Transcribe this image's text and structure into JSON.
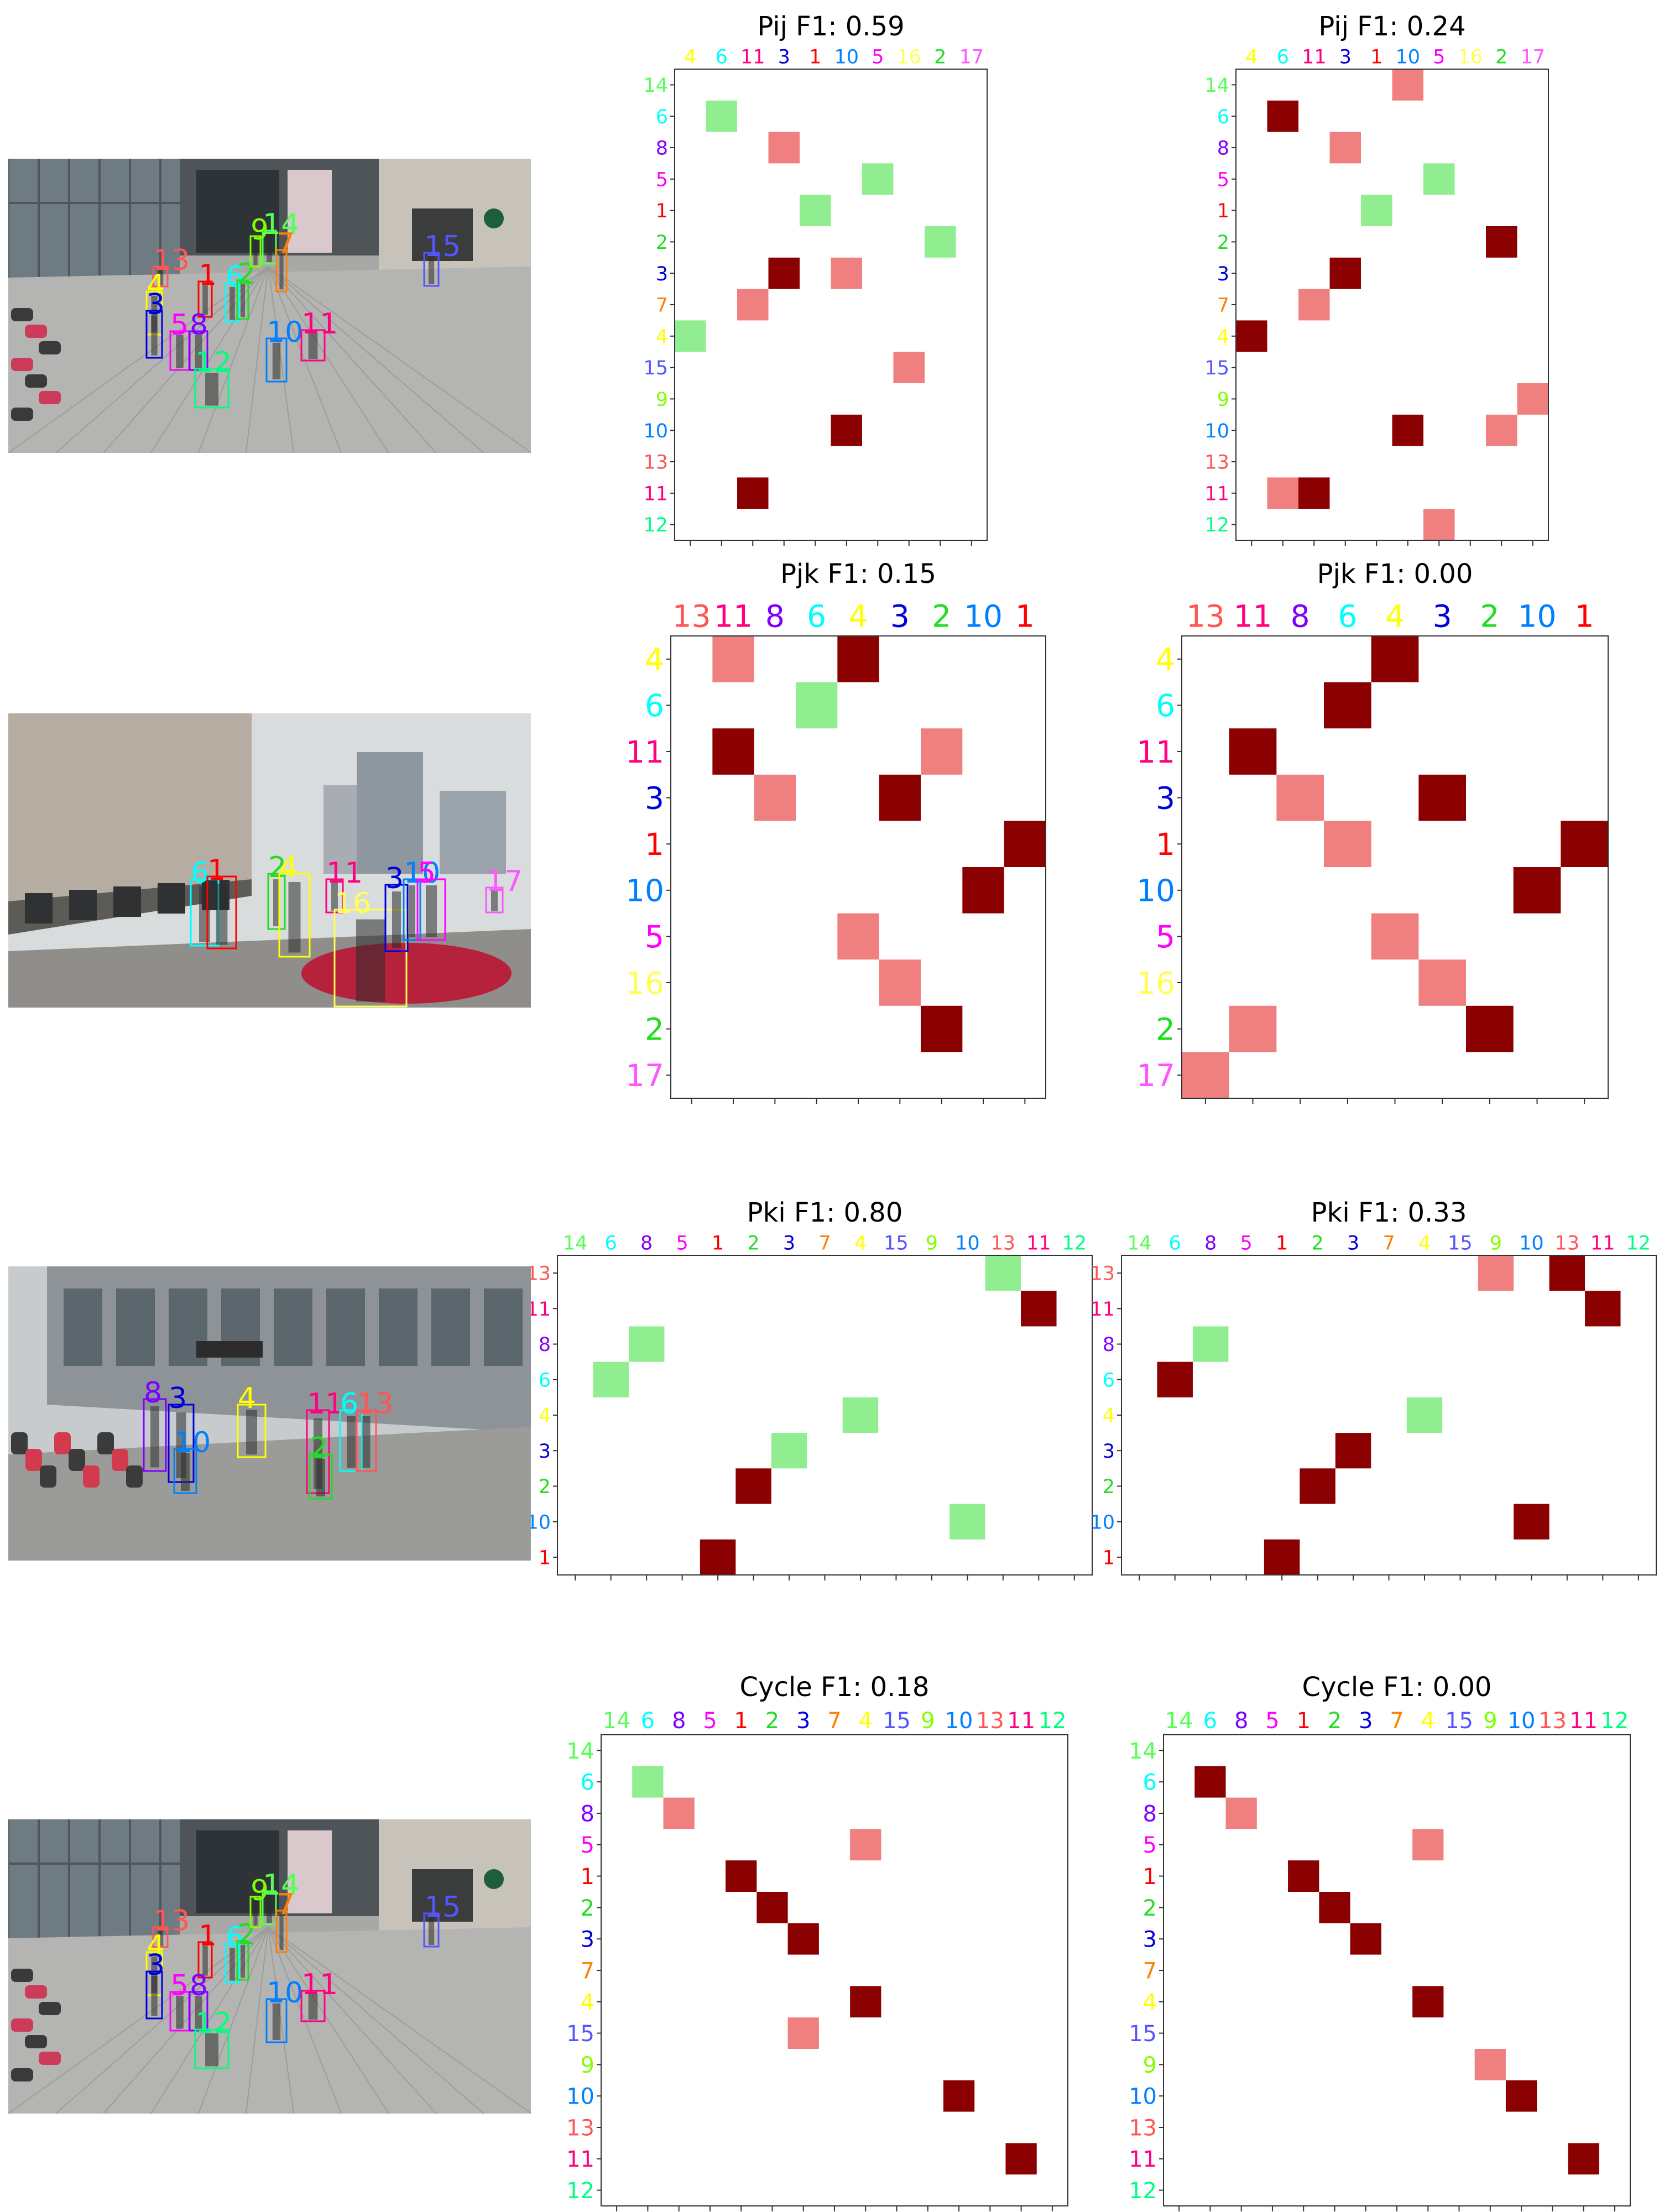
{
  "colors": {
    "correct": "#90EE90",
    "missed": "#F08080",
    "predicted": "#8B0000",
    "frame": "#333333",
    "ids": {
      "1": "#FF0000",
      "2": "#22DD22",
      "3": "#0000DD",
      "4": "#FFFF00",
      "5": "#FF00FF",
      "6": "#00FFFF",
      "7": "#FF8000",
      "8": "#8000FF",
      "9": "#80FF00",
      "10": "#0080FF",
      "11": "#FF0080",
      "12": "#00FF80",
      "13": "#FF5555",
      "14": "#55FF55",
      "15": "#5555FF",
      "16": "#FFFF55",
      "17": "#FF55FF"
    }
  },
  "photos": [
    {
      "scene": "mall-entrance",
      "boxes": [
        {
          "id": "13",
          "label": "13"
        },
        {
          "id": "1",
          "label": "1"
        },
        {
          "id": "6",
          "label": "6"
        },
        {
          "id": "2",
          "label": "2"
        },
        {
          "id": "4",
          "label": "4"
        },
        {
          "id": "3",
          "label": "3"
        },
        {
          "id": "5",
          "label": "5"
        },
        {
          "id": "8",
          "label": "8"
        },
        {
          "id": "9",
          "label": "9"
        },
        {
          "id": "14",
          "label": "14"
        },
        {
          "id": "7",
          "label": "7"
        },
        {
          "id": "15",
          "label": "15"
        },
        {
          "id": "10",
          "label": "10"
        },
        {
          "id": "11",
          "label": "11"
        },
        {
          "id": "12",
          "label": "12"
        }
      ]
    },
    {
      "scene": "street",
      "boxes": [
        {
          "id": "6",
          "label": "6"
        },
        {
          "id": "1",
          "label": "1"
        },
        {
          "id": "2",
          "label": "2"
        },
        {
          "id": "4",
          "label": "4"
        },
        {
          "id": "11",
          "label": "11"
        },
        {
          "id": "16",
          "label": "16"
        },
        {
          "id": "3",
          "label": "3"
        },
        {
          "id": "10",
          "label": "10"
        },
        {
          "id": "5",
          "label": "5"
        },
        {
          "id": "17",
          "label": "17"
        }
      ]
    },
    {
      "scene": "shop-front",
      "boxes": [
        {
          "id": "8",
          "label": "8"
        },
        {
          "id": "3",
          "label": "3"
        },
        {
          "id": "10",
          "label": "10"
        },
        {
          "id": "4",
          "label": "4"
        },
        {
          "id": "11",
          "label": "11"
        },
        {
          "id": "2",
          "label": "2"
        },
        {
          "id": "6",
          "label": "6"
        },
        {
          "id": "13",
          "label": "13"
        }
      ]
    },
    {
      "scene": "mall-entrance",
      "boxes": [
        {
          "id": "13",
          "label": "13"
        },
        {
          "id": "1",
          "label": "1"
        },
        {
          "id": "6",
          "label": "6"
        },
        {
          "id": "2",
          "label": "2"
        },
        {
          "id": "4",
          "label": "4"
        },
        {
          "id": "3",
          "label": "3"
        },
        {
          "id": "5",
          "label": "5"
        },
        {
          "id": "8",
          "label": "8"
        },
        {
          "id": "9",
          "label": "9"
        },
        {
          "id": "14",
          "label": "14"
        },
        {
          "id": "7",
          "label": "7"
        },
        {
          "id": "15",
          "label": "15"
        },
        {
          "id": "10",
          "label": "10"
        },
        {
          "id": "11",
          "label": "11"
        },
        {
          "id": "12",
          "label": "12"
        }
      ]
    }
  ],
  "chart_data": [
    {
      "type": "heatmap",
      "title": "Pij F1: 0.59",
      "columns": [
        "4",
        "6",
        "11",
        "3",
        "1",
        "10",
        "5",
        "16",
        "2",
        "17"
      ],
      "rows": [
        "14",
        "6",
        "8",
        "5",
        "1",
        "2",
        "3",
        "7",
        "4",
        "15",
        "9",
        "10",
        "13",
        "11",
        "12"
      ],
      "cells": [
        {
          "row": "6",
          "col": "6",
          "state": "correct"
        },
        {
          "row": "8",
          "col": "3",
          "state": "missed"
        },
        {
          "row": "5",
          "col": "5",
          "state": "correct"
        },
        {
          "row": "1",
          "col": "1",
          "state": "correct"
        },
        {
          "row": "2",
          "col": "2",
          "state": "correct"
        },
        {
          "row": "3",
          "col": "3",
          "state": "predicted"
        },
        {
          "row": "3",
          "col": "10",
          "state": "missed"
        },
        {
          "row": "7",
          "col": "11",
          "state": "missed"
        },
        {
          "row": "4",
          "col": "4",
          "state": "correct"
        },
        {
          "row": "15",
          "col": "16",
          "state": "missed"
        },
        {
          "row": "10",
          "col": "10",
          "state": "predicted"
        },
        {
          "row": "11",
          "col": "11",
          "state": "predicted"
        }
      ]
    },
    {
      "type": "heatmap",
      "title": "Pij F1: 0.24",
      "columns": [
        "4",
        "6",
        "11",
        "3",
        "1",
        "10",
        "5",
        "16",
        "2",
        "17"
      ],
      "rows": [
        "14",
        "6",
        "8",
        "5",
        "1",
        "2",
        "3",
        "7",
        "4",
        "15",
        "9",
        "10",
        "13",
        "11",
        "12"
      ],
      "cells": [
        {
          "row": "14",
          "col": "10",
          "state": "missed"
        },
        {
          "row": "6",
          "col": "6",
          "state": "predicted"
        },
        {
          "row": "8",
          "col": "3",
          "state": "missed"
        },
        {
          "row": "5",
          "col": "5",
          "state": "correct"
        },
        {
          "row": "1",
          "col": "1",
          "state": "correct"
        },
        {
          "row": "2",
          "col": "2",
          "state": "predicted"
        },
        {
          "row": "3",
          "col": "3",
          "state": "predicted"
        },
        {
          "row": "7",
          "col": "11",
          "state": "missed"
        },
        {
          "row": "4",
          "col": "4",
          "state": "predicted"
        },
        {
          "row": "9",
          "col": "17",
          "state": "missed"
        },
        {
          "row": "10",
          "col": "10",
          "state": "predicted"
        },
        {
          "row": "10",
          "col": "2",
          "state": "missed"
        },
        {
          "row": "11",
          "col": "6",
          "state": "missed"
        },
        {
          "row": "11",
          "col": "11",
          "state": "predicted"
        },
        {
          "row": "12",
          "col": "5",
          "state": "missed"
        }
      ]
    },
    {
      "type": "heatmap",
      "title": "Pjk F1: 0.15",
      "columns": [
        "13",
        "11",
        "8",
        "6",
        "4",
        "3",
        "2",
        "10",
        "1"
      ],
      "rows": [
        "4",
        "6",
        "11",
        "3",
        "1",
        "10",
        "5",
        "16",
        "2",
        "17"
      ],
      "cells": [
        {
          "row": "4",
          "col": "11",
          "state": "missed"
        },
        {
          "row": "4",
          "col": "4",
          "state": "predicted"
        },
        {
          "row": "6",
          "col": "6",
          "state": "correct"
        },
        {
          "row": "11",
          "col": "11",
          "state": "predicted"
        },
        {
          "row": "11",
          "col": "2",
          "state": "missed"
        },
        {
          "row": "3",
          "col": "8",
          "state": "missed"
        },
        {
          "row": "3",
          "col": "3",
          "state": "predicted"
        },
        {
          "row": "1",
          "col": "1",
          "state": "predicted"
        },
        {
          "row": "10",
          "col": "10",
          "state": "predicted"
        },
        {
          "row": "5",
          "col": "4",
          "state": "missed"
        },
        {
          "row": "16",
          "col": "3",
          "state": "missed"
        },
        {
          "row": "2",
          "col": "2",
          "state": "predicted"
        }
      ]
    },
    {
      "type": "heatmap",
      "title": "Pjk F1: 0.00",
      "columns": [
        "13",
        "11",
        "8",
        "6",
        "4",
        "3",
        "2",
        "10",
        "1"
      ],
      "rows": [
        "4",
        "6",
        "11",
        "3",
        "1",
        "10",
        "5",
        "16",
        "2",
        "17"
      ],
      "cells": [
        {
          "row": "4",
          "col": "4",
          "state": "predicted"
        },
        {
          "row": "6",
          "col": "6",
          "state": "predicted"
        },
        {
          "row": "11",
          "col": "11",
          "state": "predicted"
        },
        {
          "row": "3",
          "col": "8",
          "state": "missed"
        },
        {
          "row": "3",
          "col": "3",
          "state": "predicted"
        },
        {
          "row": "1",
          "col": "6",
          "state": "missed"
        },
        {
          "row": "1",
          "col": "1",
          "state": "predicted"
        },
        {
          "row": "10",
          "col": "10",
          "state": "predicted"
        },
        {
          "row": "5",
          "col": "4",
          "state": "missed"
        },
        {
          "row": "16",
          "col": "3",
          "state": "missed"
        },
        {
          "row": "2",
          "col": "11",
          "state": "missed"
        },
        {
          "row": "2",
          "col": "2",
          "state": "predicted"
        },
        {
          "row": "17",
          "col": "13",
          "state": "missed"
        }
      ]
    },
    {
      "type": "heatmap",
      "title": "Pki F1: 0.80",
      "columns": [
        "14",
        "6",
        "8",
        "5",
        "1",
        "2",
        "3",
        "7",
        "4",
        "15",
        "9",
        "10",
        "13",
        "11",
        "12"
      ],
      "rows": [
        "13",
        "11",
        "8",
        "6",
        "4",
        "3",
        "2",
        "10",
        "1"
      ],
      "cells": [
        {
          "row": "13",
          "col": "13",
          "state": "correct"
        },
        {
          "row": "11",
          "col": "11",
          "state": "predicted"
        },
        {
          "row": "8",
          "col": "8",
          "state": "correct"
        },
        {
          "row": "6",
          "col": "6",
          "state": "correct"
        },
        {
          "row": "4",
          "col": "4",
          "state": "correct"
        },
        {
          "row": "3",
          "col": "3",
          "state": "correct"
        },
        {
          "row": "2",
          "col": "2",
          "state": "predicted"
        },
        {
          "row": "10",
          "col": "10",
          "state": "correct"
        },
        {
          "row": "1",
          "col": "1",
          "state": "predicted"
        }
      ]
    },
    {
      "type": "heatmap",
      "title": "Pki F1: 0.33",
      "columns": [
        "14",
        "6",
        "8",
        "5",
        "1",
        "2",
        "3",
        "7",
        "4",
        "15",
        "9",
        "10",
        "13",
        "11",
        "12"
      ],
      "rows": [
        "13",
        "11",
        "8",
        "6",
        "4",
        "3",
        "2",
        "10",
        "1"
      ],
      "cells": [
        {
          "row": "13",
          "col": "9",
          "state": "missed"
        },
        {
          "row": "13",
          "col": "13",
          "state": "predicted"
        },
        {
          "row": "11",
          "col": "11",
          "state": "predicted"
        },
        {
          "row": "8",
          "col": "8",
          "state": "correct"
        },
        {
          "row": "6",
          "col": "6",
          "state": "predicted"
        },
        {
          "row": "4",
          "col": "4",
          "state": "correct"
        },
        {
          "row": "3",
          "col": "3",
          "state": "predicted"
        },
        {
          "row": "2",
          "col": "2",
          "state": "predicted"
        },
        {
          "row": "10",
          "col": "10",
          "state": "predicted"
        },
        {
          "row": "1",
          "col": "1",
          "state": "predicted"
        }
      ]
    },
    {
      "type": "heatmap",
      "title": "Cycle F1: 0.18",
      "columns": [
        "14",
        "6",
        "8",
        "5",
        "1",
        "2",
        "3",
        "7",
        "4",
        "15",
        "9",
        "10",
        "13",
        "11",
        "12"
      ],
      "rows": [
        "14",
        "6",
        "8",
        "5",
        "1",
        "2",
        "3",
        "7",
        "4",
        "15",
        "9",
        "10",
        "13",
        "11",
        "12"
      ],
      "cells": [
        {
          "row": "6",
          "col": "6",
          "state": "correct"
        },
        {
          "row": "8",
          "col": "8",
          "state": "missed"
        },
        {
          "row": "5",
          "col": "4",
          "state": "missed"
        },
        {
          "row": "1",
          "col": "1",
          "state": "predicted"
        },
        {
          "row": "2",
          "col": "2",
          "state": "predicted"
        },
        {
          "row": "3",
          "col": "3",
          "state": "predicted"
        },
        {
          "row": "4",
          "col": "4",
          "state": "predicted"
        },
        {
          "row": "15",
          "col": "3",
          "state": "missed"
        },
        {
          "row": "10",
          "col": "10",
          "state": "predicted"
        },
        {
          "row": "11",
          "col": "11",
          "state": "predicted"
        }
      ]
    },
    {
      "type": "heatmap",
      "title": "Cycle F1: 0.00",
      "columns": [
        "14",
        "6",
        "8",
        "5",
        "1",
        "2",
        "3",
        "7",
        "4",
        "15",
        "9",
        "10",
        "13",
        "11",
        "12"
      ],
      "rows": [
        "14",
        "6",
        "8",
        "5",
        "1",
        "2",
        "3",
        "7",
        "4",
        "15",
        "9",
        "10",
        "13",
        "11",
        "12"
      ],
      "cells": [
        {
          "row": "6",
          "col": "6",
          "state": "predicted"
        },
        {
          "row": "8",
          "col": "8",
          "state": "missed"
        },
        {
          "row": "5",
          "col": "4",
          "state": "missed"
        },
        {
          "row": "1",
          "col": "1",
          "state": "predicted"
        },
        {
          "row": "2",
          "col": "2",
          "state": "predicted"
        },
        {
          "row": "3",
          "col": "3",
          "state": "predicted"
        },
        {
          "row": "4",
          "col": "4",
          "state": "predicted"
        },
        {
          "row": "9",
          "col": "9",
          "state": "missed"
        },
        {
          "row": "10",
          "col": "10",
          "state": "predicted"
        },
        {
          "row": "11",
          "col": "11",
          "state": "predicted"
        }
      ]
    }
  ]
}
